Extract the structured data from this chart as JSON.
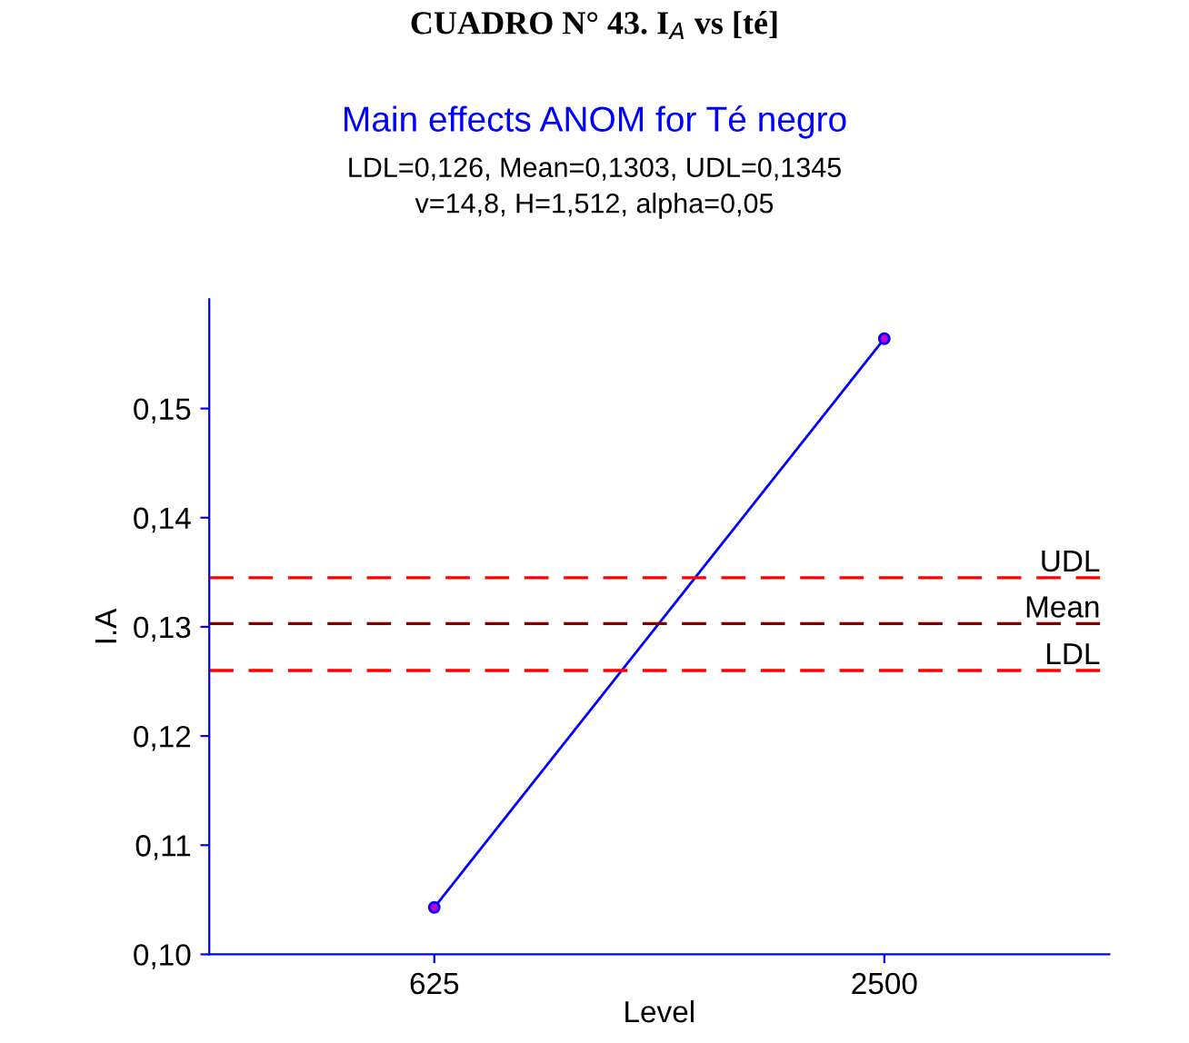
{
  "chart_data": {
    "type": "line",
    "title": "Main effects ANOM for Té negro",
    "subtitle": "LDL=0,126, Mean=0,1303, UDL=0,1345\nv=14,8, H=1,512, alpha=0,05",
    "annotations": [
      "CUADRO N° 43. I$_{A}$ vs [té]"
    ],
    "xlabel": "Level",
    "ylabel": "I.A",
    "categories": [
      "625",
      "2500"
    ],
    "series": [
      {
        "color": "#0000ff",
        "values": [
          0.1043,
          0.1564
        ]
      }
    ],
    "marker": "circle",
    "line_style": "solid",
    "grid": false,
    "legend": false,
    "ylim": [
      0.1,
      0.16
    ],
    "yticks": [
      {
        "value": 0.1,
        "label": "0,10"
      },
      {
        "value": 0.11,
        "label": "0,11"
      },
      {
        "value": 0.12,
        "label": "0,12"
      },
      {
        "value": 0.13,
        "label": "0,13"
      },
      {
        "value": 0.14,
        "label": "0,14"
      },
      {
        "value": 0.15,
        "label": "0,15"
      }
    ],
    "ref_lines": [
      {
        "axis": "y",
        "value": 0.1345,
        "label": "UDL",
        "color": "#ff0000",
        "line_style": "dashed"
      },
      {
        "axis": "y",
        "value": 0.1303,
        "label": "Mean",
        "color": "#800000",
        "line_style": "dashed"
      },
      {
        "axis": "y",
        "value": 0.126,
        "label": "LDL",
        "color": "#ff0000",
        "line_style": "dashed"
      }
    ]
  }
}
